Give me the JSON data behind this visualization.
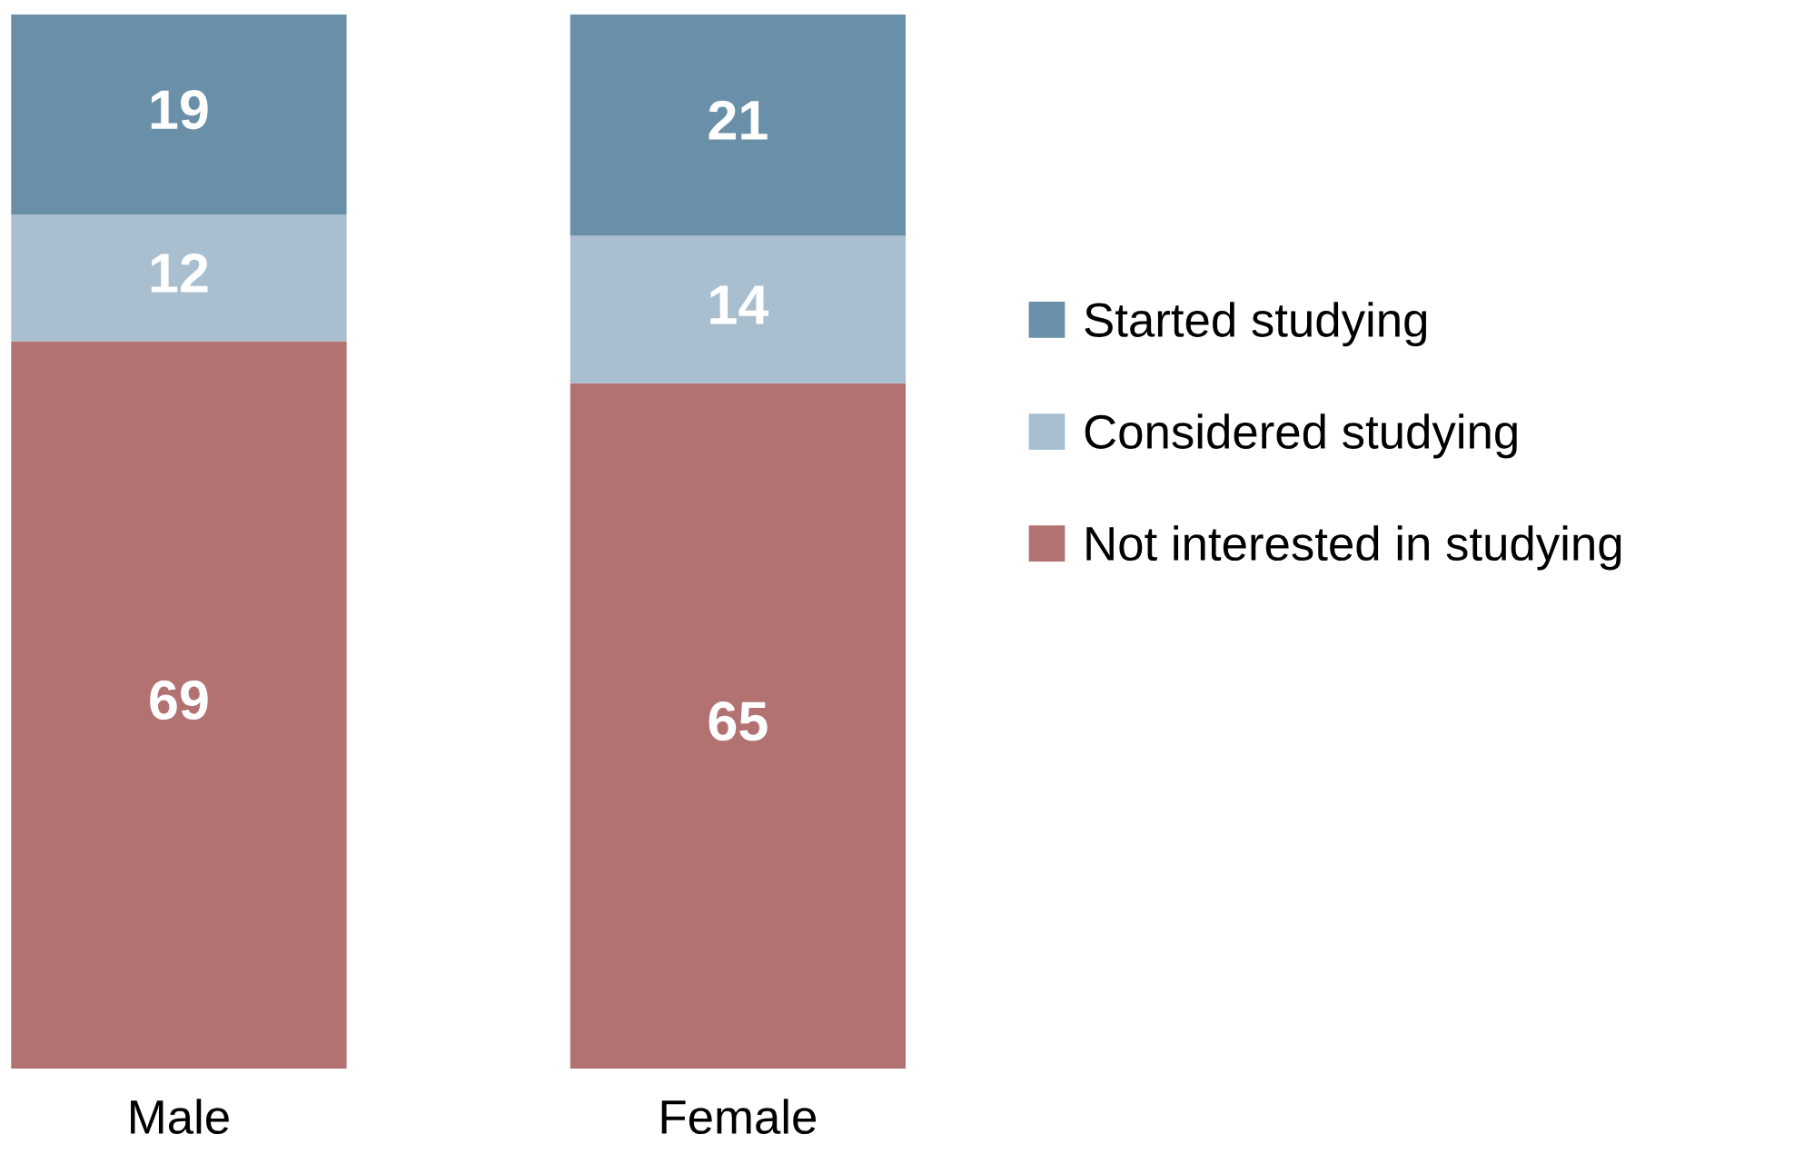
{
  "chart_data": {
    "type": "bar",
    "stacked": true,
    "categories": [
      "Male",
      "Female"
    ],
    "series": [
      {
        "name": "Not interested in studying",
        "color": "#b37272",
        "values": [
          69,
          65
        ]
      },
      {
        "name": "Considered studying",
        "color": "#a9bfcf",
        "values": [
          12,
          14
        ]
      },
      {
        "name": "Started studying",
        "color": "#6a8fa8",
        "values": [
          19,
          21
        ]
      }
    ],
    "data_labels": true,
    "legend": "right",
    "grid": false
  }
}
